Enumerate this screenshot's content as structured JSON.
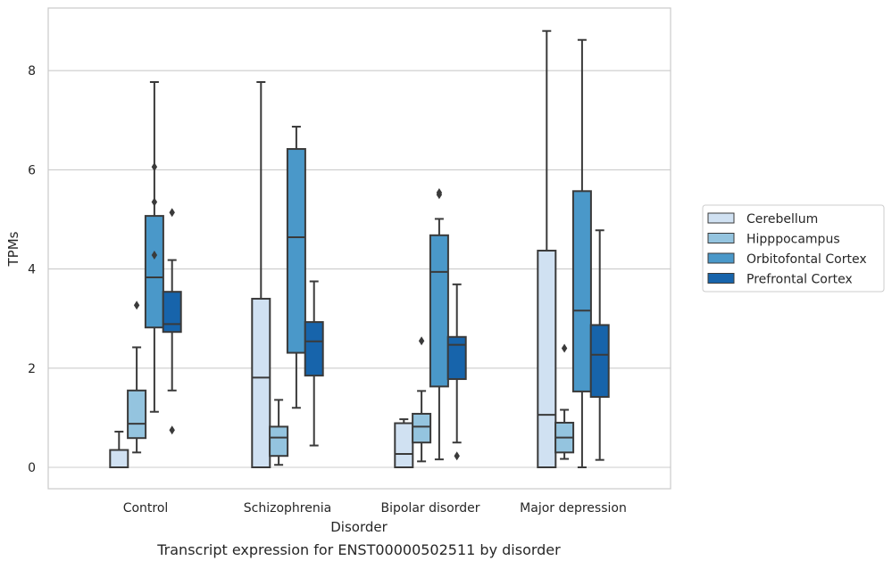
{
  "chart_data": {
    "type": "box",
    "title": "Transcript expression for ENST00000502511 by disorder",
    "xlabel": "Disorder",
    "ylabel": "TPMs",
    "ylim": [
      -0.4,
      9.25
    ],
    "yticks": [
      0,
      2,
      4,
      6,
      8
    ],
    "grid": "horizontal",
    "legend_position": "right",
    "categories": [
      "Control",
      "Schizophrenia",
      "Bipolar disorder",
      "Major depression"
    ],
    "series": [
      {
        "name": "Cerebellum",
        "color": "#d0e1f2",
        "boxes": [
          {
            "whislo": 0.0,
            "q1": 0.0,
            "med": 0.0,
            "q3": 0.35,
            "whishi": 0.72,
            "fliers": []
          },
          {
            "whislo": 0.0,
            "q1": 0.0,
            "med": 1.81,
            "q3": 3.4,
            "whishi": 7.77,
            "fliers": []
          },
          {
            "whislo": 0.0,
            "q1": 0.0,
            "med": 0.27,
            "q3": 0.89,
            "whishi": 0.97,
            "fliers": []
          },
          {
            "whislo": 0.0,
            "q1": 0.0,
            "med": 1.06,
            "q3": 4.37,
            "whishi": 8.8,
            "fliers": []
          }
        ]
      },
      {
        "name": "Hipppocampus",
        "color": "#94c4df",
        "boxes": [
          {
            "whislo": 0.3,
            "q1": 0.59,
            "med": 0.88,
            "q3": 1.55,
            "whishi": 2.42,
            "fliers": [
              3.27
            ]
          },
          {
            "whislo": 0.05,
            "q1": 0.23,
            "med": 0.6,
            "q3": 0.82,
            "whishi": 1.36,
            "fliers": []
          },
          {
            "whislo": 0.12,
            "q1": 0.5,
            "med": 0.82,
            "q3": 1.08,
            "whishi": 1.54,
            "fliers": [
              2.55
            ]
          },
          {
            "whislo": 0.17,
            "q1": 0.3,
            "med": 0.6,
            "q3": 0.9,
            "whishi": 1.16,
            "fliers": [
              2.4
            ]
          }
        ]
      },
      {
        "name": "Orbitofontal Cortex",
        "color": "#4a98c9",
        "boxes": [
          {
            "whislo": 1.12,
            "q1": 2.82,
            "med": 3.83,
            "q3": 5.07,
            "whishi": 7.77,
            "fliers": [
              4.28,
              5.35,
              6.06
            ]
          },
          {
            "whislo": 1.2,
            "q1": 2.31,
            "med": 4.64,
            "q3": 6.42,
            "whishi": 6.87,
            "fliers": []
          },
          {
            "whislo": 0.16,
            "q1": 1.63,
            "med": 3.94,
            "q3": 4.68,
            "whishi": 5.01,
            "fliers": [
              5.5,
              5.54
            ]
          },
          {
            "whislo": 0.0,
            "q1": 1.53,
            "med": 3.16,
            "q3": 5.57,
            "whishi": 8.62,
            "fliers": []
          }
        ]
      },
      {
        "name": "Prefrontal Cortex",
        "color": "#1764ab",
        "boxes": [
          {
            "whislo": 1.55,
            "q1": 2.73,
            "med": 2.89,
            "q3": 3.54,
            "whishi": 4.18,
            "fliers": [
              0.75,
              5.14
            ]
          },
          {
            "whislo": 0.44,
            "q1": 1.85,
            "med": 2.54,
            "q3": 2.93,
            "whishi": 3.75,
            "fliers": []
          },
          {
            "whislo": 0.5,
            "q1": 1.78,
            "med": 2.47,
            "q3": 2.63,
            "whishi": 3.69,
            "fliers": [
              0.23
            ]
          },
          {
            "whislo": 0.15,
            "q1": 1.42,
            "med": 2.27,
            "q3": 2.87,
            "whishi": 4.78,
            "fliers": []
          }
        ]
      }
    ]
  }
}
